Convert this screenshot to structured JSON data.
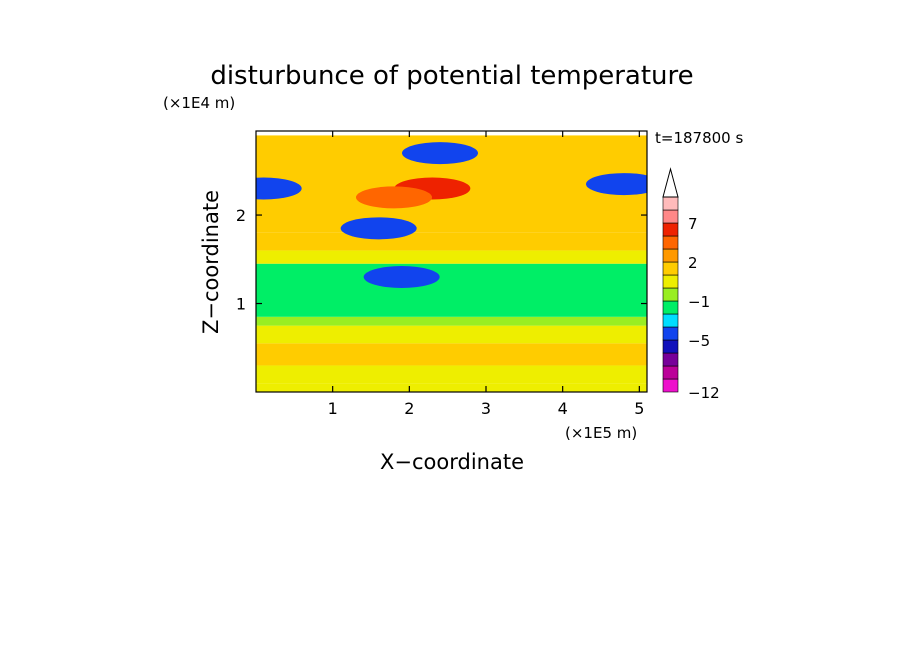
{
  "chart_data": {
    "type": "heatmap",
    "title": "disturbunce of potential temperature",
    "xlabel": "X−coordinate",
    "ylabel": "Z−coordinate",
    "x_scale_label": "(×1E5 m)",
    "y_scale_label": "(×1E4 m)",
    "time_label": "t=187800 s",
    "xlim": [
      0,
      5.1
    ],
    "ylim": [
      0,
      2.95
    ],
    "x_ticks": [
      1,
      2,
      3,
      4,
      5
    ],
    "x_tick_labels": [
      "1",
      "2",
      "3",
      "4",
      "5"
    ],
    "y_ticks": [
      1,
      2
    ],
    "y_tick_labels": [
      "1",
      "2"
    ],
    "colorbar": {
      "levels": [
        -12,
        -11,
        -9,
        -7,
        -5,
        -3,
        -2,
        -1,
        0,
        1,
        2,
        3,
        5,
        7,
        9,
        11
      ],
      "colors": [
        "#ee11cc",
        "#bb0099",
        "#770099",
        "#1111bb",
        "#1144ee",
        "#00ddff",
        "#00ee66",
        "#99ee22",
        "#eeee00",
        "#ffcc00",
        "#ff9900",
        "#ff6600",
        "#ee2200",
        "#ff8888",
        "#ffbbbb"
      ],
      "tick_values": [
        -12,
        -5,
        -1,
        2,
        7
      ],
      "tick_labels": [
        "−12",
        "−5",
        "−1",
        "2",
        "7"
      ],
      "extend": "max"
    },
    "bands": [
      {
        "z": [
          0.0,
          0.1
        ],
        "value": 0.5
      },
      {
        "z": [
          0.1,
          0.3
        ],
        "value": 0.5
      },
      {
        "z": [
          0.3,
          0.55
        ],
        "value": 1.5
      },
      {
        "z": [
          0.55,
          0.75
        ],
        "value": 0.5
      },
      {
        "z": [
          0.75,
          0.85
        ],
        "value": -0.5
      },
      {
        "z": [
          0.85,
          1.45
        ],
        "value": -1.5
      },
      {
        "z": [
          1.45,
          1.6
        ],
        "value": 0.5
      },
      {
        "z": [
          1.6,
          1.8
        ],
        "value": 1.5
      },
      {
        "z": [
          1.8,
          2.9
        ],
        "value": 1.5
      }
    ],
    "features": [
      {
        "x": 2.3,
        "z": 2.3,
        "value": 5.5
      },
      {
        "x": 1.8,
        "z": 2.2,
        "value": 3.5
      },
      {
        "x": 0.1,
        "z": 2.3,
        "value": -4.5
      },
      {
        "x": 1.6,
        "z": 1.85,
        "value": -4.5
      },
      {
        "x": 2.4,
        "z": 2.7,
        "value": -4.5
      },
      {
        "x": 4.8,
        "z": 2.35,
        "value": -4.5
      },
      {
        "x": 1.9,
        "z": 1.3,
        "value": -4.5
      }
    ]
  }
}
